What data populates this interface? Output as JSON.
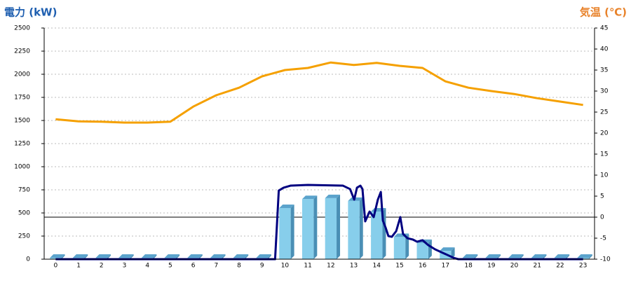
{
  "chart_data": {
    "type": "combo",
    "title": "電力 (kW)",
    "y2_title": "気温 (℃)",
    "categories": [
      "0",
      "1",
      "2",
      "3",
      "4",
      "5",
      "6",
      "7",
      "8",
      "9",
      "10",
      "11",
      "12",
      "13",
      "14",
      "15",
      "16",
      "17",
      "18",
      "19",
      "20",
      "21",
      "22",
      "23"
    ],
    "xlim": [
      -0.5,
      23.5
    ],
    "ylim": [
      0,
      2500
    ],
    "yticks": [
      0,
      250,
      500,
      750,
      1000,
      1250,
      1500,
      1750,
      2000,
      2250,
      2500
    ],
    "y2lim": [
      -10,
      45
    ],
    "y2ticks": [
      -10,
      -5,
      0,
      5,
      10,
      15,
      20,
      25,
      30,
      35,
      40,
      45
    ],
    "grid": true,
    "series": [
      {
        "type": "bar",
        "color": "#87ceeb",
        "values": [
          15,
          15,
          15,
          15,
          15,
          15,
          15,
          15,
          15,
          15,
          553,
          650,
          660,
          630,
          515,
          240,
          175,
          90,
          15,
          15,
          15,
          15,
          15,
          15
        ]
      },
      {
        "type": "line",
        "color": "#000080",
        "x": [
          0,
          9.57,
          9.73,
          9.94,
          10.24,
          11.0,
          12.53,
          12.84,
          13.02,
          13.14,
          13.29,
          13.38,
          13.5,
          13.69,
          13.87,
          14.05,
          14.18,
          14.27,
          14.39,
          14.51,
          14.66,
          14.85,
          15.03,
          15.15,
          15.34,
          15.58,
          15.76,
          16.0,
          16.25,
          16.55,
          16.95,
          17.35,
          17.56,
          23
        ],
        "values": [
          0,
          0,
          742,
          773,
          795,
          803,
          795,
          758,
          644,
          773,
          795,
          758,
          409,
          515,
          455,
          644,
          727,
          417,
          341,
          250,
          242,
          303,
          455,
          273,
          227,
          212,
          189,
          205,
          152,
          106,
          61,
          15,
          0,
          0
        ]
      },
      {
        "type": "line",
        "color": "#f5a000",
        "axis": "y2",
        "values": [
          23.3,
          22.8,
          22.7,
          22.5,
          22.5,
          22.7,
          26.3,
          29,
          30.8,
          33.5,
          35,
          35.5,
          36.8,
          36.2,
          36.7,
          36,
          35.5,
          32.3,
          30.8,
          30,
          29.3,
          28.3,
          27.5,
          26.7
        ]
      }
    ]
  }
}
